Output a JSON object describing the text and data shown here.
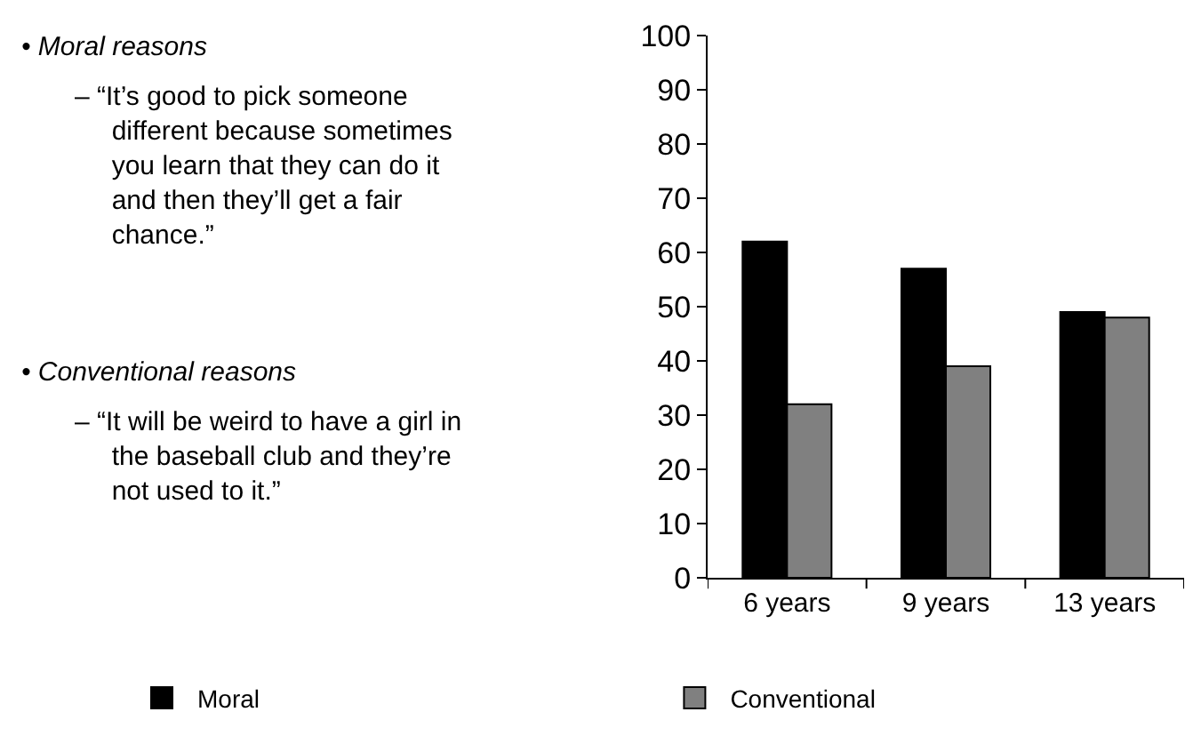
{
  "chart_data": {
    "type": "bar",
    "categories": [
      "6 years",
      "9 years",
      "13 years"
    ],
    "series": [
      {
        "name": "Moral",
        "color": "#000000",
        "values": [
          62,
          57,
          49
        ]
      },
      {
        "name": "Conventional",
        "color": "#808080",
        "values": [
          32,
          39,
          48
        ]
      }
    ],
    "ylim": [
      0,
      100
    ],
    "yticks": [
      0,
      10,
      20,
      30,
      40,
      50,
      60,
      70,
      80,
      90,
      100
    ],
    "legend": "bottom",
    "annotations": [
      "• Moral reasons",
      "– “It’s good to pick someone\ndifferent because sometimes\nyou learn that they can do it\nand then they’ll get a fair\nchance.”",
      "• Conventional reasons",
      "– “It will be weird to have a girl in\nthe baseball club and they’re\nnot used to it.”"
    ]
  }
}
